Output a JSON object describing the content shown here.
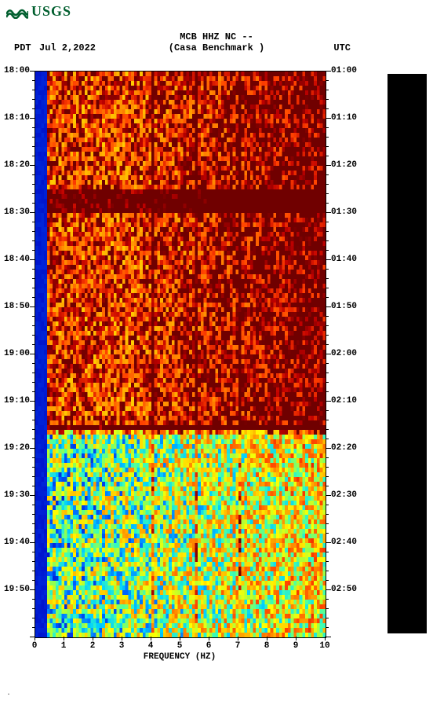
{
  "logo": {
    "text": "USGS",
    "color": "#005e2e"
  },
  "header": {
    "line1": "MCB HHZ NC --",
    "pdt": "PDT",
    "date": "Jul 2,2022",
    "station": "(Casa Benchmark )",
    "utc": "UTC"
  },
  "spectrogram": {
    "type": "heatmap",
    "xlabel": "FREQUENCY (HZ)",
    "xlim": [
      0,
      10
    ],
    "xticks": [
      0,
      1,
      2,
      3,
      4,
      5,
      6,
      7,
      8,
      9,
      10
    ],
    "left_time_ticks": [
      "18:00",
      "18:10",
      "18:20",
      "18:30",
      "18:40",
      "18:50",
      "19:00",
      "19:10",
      "19:20",
      "19:30",
      "19:40",
      "19:50"
    ],
    "right_time_ticks": [
      "01:00",
      "01:10",
      "01:20",
      "01:30",
      "01:40",
      "01:50",
      "02:00",
      "02:10",
      "02:20",
      "02:30",
      "02:40",
      "02:50"
    ],
    "n_rows": 120,
    "n_cols": 100,
    "row_minor_step": 2,
    "palette": [
      "#0000c0",
      "#0060ff",
      "#00d0ff",
      "#40ffb0",
      "#a0ff40",
      "#ffff00",
      "#ffc000",
      "#ff8000",
      "#ff4000",
      "#c00000",
      "#700000"
    ],
    "blue_edge_col": 4,
    "vertical_dark_cols": [
      40,
      55,
      70
    ],
    "phase1_range": [
      0,
      76
    ],
    "phase1_base_low": 0.78,
    "phase1_base_high": 0.6,
    "phase1_jitter": 0.25,
    "phase2_range": [
      76,
      120
    ],
    "phase2_base_low": 0.32,
    "phase2_base_high": 0.55,
    "phase2_jitter": 0.3,
    "dark_band_rows": [
      [
        25,
        30
      ],
      [
        75,
        77
      ]
    ],
    "background_color": "#ffffff",
    "axis_fontsize": 11,
    "label_fontsize": 12
  },
  "colorbar": {
    "fill": "#000000"
  },
  "footnote": "."
}
